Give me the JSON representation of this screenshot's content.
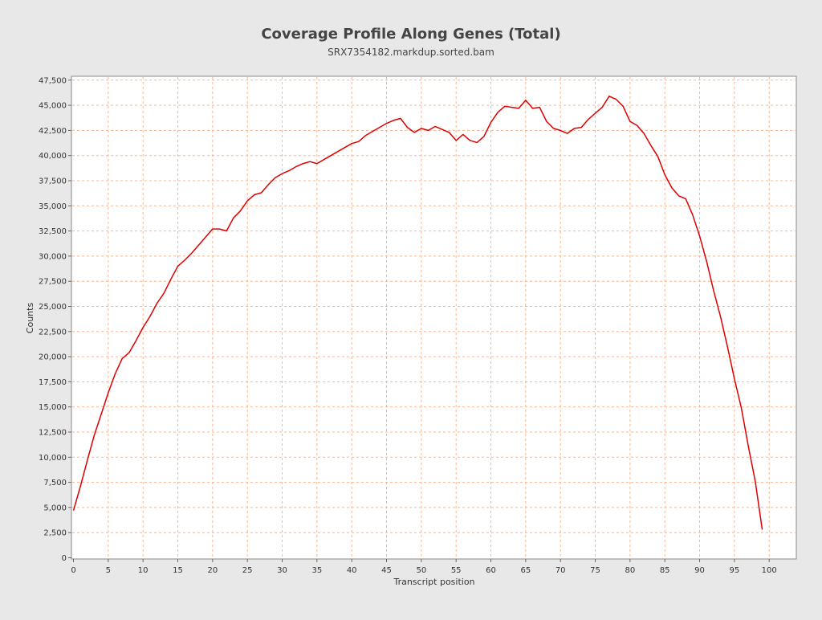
{
  "chart_data": {
    "type": "line",
    "title": "Coverage Profile Along Genes (Total)",
    "subtitle": "SRX7354182.markdup.sorted.bam",
    "xlabel": "Transcript position",
    "ylabel": "Counts",
    "xlim": [
      0,
      104
    ],
    "ylim": [
      0,
      48000
    ],
    "x_ticks": [
      0,
      5,
      10,
      15,
      20,
      25,
      30,
      35,
      40,
      45,
      50,
      55,
      60,
      65,
      70,
      75,
      80,
      85,
      90,
      95,
      100
    ],
    "y_ticks": [
      0,
      2500,
      5000,
      7500,
      10000,
      12500,
      15000,
      17500,
      20000,
      22500,
      25000,
      27500,
      30000,
      32500,
      35000,
      37500,
      40000,
      42500,
      45000,
      47500
    ],
    "y_tick_labels": [
      "0",
      "2,500",
      "5,000",
      "7,500",
      "10,000",
      "12,500",
      "15,000",
      "17,500",
      "20,000",
      "22,500",
      "25,000",
      "27,500",
      "30,000",
      "32,500",
      "35,000",
      "37,500",
      "40,000",
      "42,500",
      "45,000",
      "47,500"
    ],
    "grid": true,
    "line_color": "#dd0000",
    "series": [
      {
        "x": [
          0,
          1,
          2,
          3,
          4,
          5,
          6,
          7,
          8,
          9,
          10,
          11,
          12,
          13,
          14,
          15,
          16,
          17,
          18,
          19,
          20,
          21,
          22,
          23,
          24,
          25,
          26,
          27,
          28,
          29,
          30,
          31,
          32,
          33,
          34,
          35,
          36,
          37,
          38,
          39,
          40,
          41,
          42,
          43,
          44,
          45,
          46,
          47,
          48,
          49,
          50,
          51,
          52,
          53,
          54,
          55,
          56,
          57,
          58,
          59,
          60,
          61,
          62,
          63,
          64,
          65,
          66,
          67,
          68,
          69,
          70,
          71,
          72,
          73,
          74,
          75,
          76,
          77,
          78,
          79,
          80,
          81,
          82,
          83,
          84,
          85,
          86,
          87,
          88,
          89,
          90,
          91,
          92,
          93,
          94,
          95,
          96,
          97,
          98,
          99
        ],
        "values": [
          4700,
          7100,
          9700,
          12200,
          14300,
          16400,
          18300,
          19800,
          20400,
          21600,
          22900,
          24000,
          25300,
          26300,
          27700,
          29000,
          29600,
          30300,
          31100,
          31900,
          32700,
          32700,
          32500,
          33800,
          34500,
          35500,
          36100,
          36300,
          37100,
          37800,
          38200,
          38500,
          38900,
          39200,
          39400,
          39200,
          39600,
          40000,
          40400,
          40800,
          41200,
          41400,
          42000,
          42400,
          42800,
          43200,
          43500,
          43700,
          42800,
          42300,
          42700,
          42500,
          42900,
          42600,
          42300,
          41500,
          42100,
          41500,
          41300,
          41900,
          43300,
          44300,
          44900,
          44800,
          44700,
          45500,
          44700,
          44800,
          43400,
          42700,
          42500,
          42200,
          42700,
          42800,
          43600,
          44200,
          44800,
          45900,
          45600,
          44900,
          43400,
          43000,
          42200,
          41000,
          39900,
          38100,
          36800,
          36000,
          35700,
          34100,
          32000,
          29500,
          26600,
          24000,
          21000,
          17800,
          14900,
          11100,
          7600,
          2800
        ]
      }
    ]
  }
}
